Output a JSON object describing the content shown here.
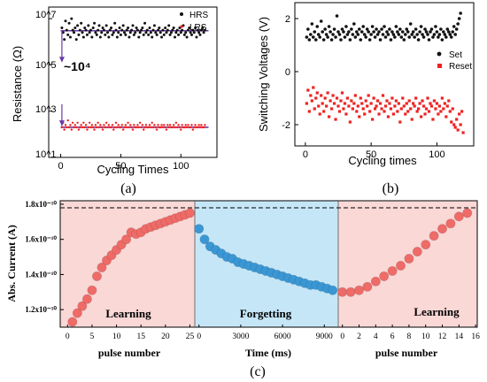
{
  "chart_data": [
    {
      "panel": "a",
      "type": "scatter",
      "xlabel": "Cycling Times",
      "ylabel": "Resistance (Ω)",
      "xlim": [
        -10,
        130
      ],
      "ylim_log10": [
        1,
        7.5
      ],
      "y_scale": "log",
      "x_ticks": [
        "0",
        "50",
        "100"
      ],
      "y_ticks": [
        "10^1",
        "10^3",
        "10^5",
        "10^7"
      ],
      "annotation": "~10⁴",
      "legend": "top-right",
      "series": [
        {
          "name": "HRS",
          "color": "#111111",
          "mean": 3000000,
          "values_log10": [
            6.6,
            6.4,
            6.1,
            6.9,
            6.5,
            6.3,
            6.8,
            6.2,
            7.0,
            6.5,
            6.4,
            6.6,
            6.1,
            6.7,
            6.3,
            6.5,
            6.8,
            6.4,
            6.2,
            6.6,
            6.5,
            6.3,
            6.7,
            6.4,
            6.5,
            6.2,
            6.6,
            6.8,
            6.4,
            6.3,
            6.5,
            6.7,
            6.2,
            6.4,
            6.6,
            6.5,
            6.3,
            6.7,
            6.4,
            6.2,
            6.5,
            6.6,
            6.3,
            6.4,
            6.8,
            6.5,
            6.2,
            6.4,
            6.6,
            6.3,
            6.5,
            6.7,
            6.4,
            6.3,
            6.5,
            6.6,
            6.2,
            6.4,
            6.5,
            6.7,
            6.3,
            6.4,
            6.6,
            6.5,
            6.2,
            6.4,
            6.5,
            6.6,
            6.3,
            6.8,
            6.4,
            6.5,
            6.3,
            6.6,
            6.4,
            6.2,
            6.5,
            6.7,
            6.4,
            6.3,
            6.5,
            6.6,
            6.4,
            6.2,
            6.5,
            6.3,
            6.6,
            6.4,
            6.5,
            6.7,
            6.3,
            6.4,
            6.5,
            6.6,
            6.2,
            6.4,
            6.5,
            6.3,
            6.6,
            6.4,
            6.5,
            6.7,
            6.3,
            6.4,
            6.2,
            6.5,
            6.6,
            6.4,
            6.3,
            6.5,
            6.4,
            6.6,
            6.2,
            6.5,
            6.4,
            6.3,
            6.5,
            6.6,
            6.4,
            6.5
          ]
        },
        {
          "name": "LRS",
          "color": "#ee2222",
          "mean": 200,
          "values_log10": [
            2.3,
            2.5,
            2.2,
            2.4,
            2.3,
            2.6,
            2.3,
            2.4,
            2.2,
            2.5,
            2.3,
            2.4,
            2.3,
            2.5,
            2.2,
            2.3,
            2.4,
            2.3,
            2.5,
            2.3,
            2.4,
            2.2,
            2.3,
            2.5,
            2.3,
            2.4,
            2.3,
            2.2,
            2.4,
            2.3,
            2.5,
            2.3,
            2.4,
            2.3,
            2.2,
            2.4,
            2.3,
            2.5,
            2.3,
            2.4,
            2.3,
            2.3,
            2.4,
            2.2,
            2.3,
            2.5,
            2.3,
            2.4,
            2.3,
            2.3,
            2.4,
            2.2,
            2.3,
            2.4,
            2.3,
            2.5,
            2.3,
            2.4,
            2.3,
            2.2,
            2.4,
            2.3,
            2.3,
            2.4,
            2.3,
            2.5,
            2.3,
            2.4,
            2.2,
            2.3,
            2.4,
            2.3,
            2.3,
            2.4,
            2.3,
            2.5,
            2.3,
            2.4,
            2.3,
            2.2,
            2.4,
            2.3,
            2.3,
            2.4,
            2.3,
            2.4,
            2.3,
            2.2,
            2.4,
            2.3,
            2.4,
            2.3,
            2.3,
            2.4,
            2.3,
            2.5,
            2.3,
            2.4,
            2.3,
            2.2,
            2.4,
            2.3,
            2.3,
            2.4,
            2.3,
            2.4,
            2.3,
            2.3,
            2.4,
            2.2,
            2.3,
            2.4,
            2.3,
            2.3,
            2.4,
            2.3,
            2.4,
            2.3,
            2.3,
            2.4
          ]
        }
      ]
    },
    {
      "panel": "b",
      "type": "scatter",
      "xlabel": "Cycling times",
      "ylabel": "Switching Voltages (V)",
      "xlim": [
        -8,
        128
      ],
      "ylim": [
        -2.8,
        2.6
      ],
      "x_ticks": [
        "0",
        "50",
        "100"
      ],
      "y_ticks": [
        "-2",
        "0",
        "2"
      ],
      "legend": "right",
      "series": [
        {
          "name": "Set",
          "color": "#111111",
          "values": [
            1.3,
            1.6,
            1.2,
            1.4,
            1.8,
            1.3,
            1.5,
            1.2,
            1.7,
            1.4,
            1.3,
            1.9,
            1.5,
            1.2,
            1.6,
            1.4,
            1.3,
            1.7,
            1.5,
            1.2,
            1.4,
            1.6,
            1.3,
            2.1,
            1.5,
            1.4,
            1.2,
            1.6,
            1.5,
            1.3,
            1.7,
            1.4,
            1.5,
            1.2,
            1.6,
            1.4,
            1.8,
            1.3,
            1.5,
            1.4,
            1.6,
            1.2,
            1.5,
            1.7,
            1.4,
            1.3,
            1.6,
            1.5,
            1.2,
            1.4,
            1.7,
            1.5,
            1.3,
            1.6,
            1.4,
            1.5,
            1.2,
            1.6,
            1.4,
            1.7,
            1.3,
            1.5,
            1.4,
            1.6,
            1.2,
            1.5,
            1.4,
            1.3,
            1.7,
            1.5,
            1.4,
            1.6,
            1.3,
            1.5,
            1.2,
            1.4,
            1.6,
            1.5,
            1.3,
            1.8,
            1.4,
            1.5,
            1.3,
            1.6,
            1.4,
            1.2,
            1.5,
            1.7,
            1.4,
            1.3,
            1.6,
            1.5,
            1.4,
            1.2,
            1.5,
            1.6,
            1.3,
            1.4,
            1.7,
            1.5,
            1.3,
            1.4,
            1.6,
            1.2,
            1.5,
            1.4,
            1.3,
            1.6,
            1.5,
            1.4,
            1.3,
            1.5,
            1.7,
            1.4,
            1.6,
            1.8,
            2.0,
            2.2
          ]
        },
        {
          "name": "Reset",
          "color": "#ee2222",
          "values": [
            -1.2,
            -0.7,
            -1.5,
            -0.9,
            -1.1,
            -0.6,
            -1.4,
            -1.0,
            -0.8,
            -1.3,
            -1.6,
            -0.9,
            -1.2,
            -1.5,
            -1.0,
            -1.3,
            -0.8,
            -1.7,
            -1.1,
            -1.4,
            -0.9,
            -1.2,
            -1.8,
            -1.0,
            -1.3,
            -1.5,
            -1.1,
            -0.8,
            -1.4,
            -1.2,
            -1.6,
            -1.0,
            -1.3,
            -1.9,
            -1.1,
            -1.4,
            -1.2,
            -0.9,
            -1.5,
            -1.3,
            -1.7,
            -1.0,
            -1.2,
            -1.4,
            -1.6,
            -1.1,
            -1.3,
            -0.9,
            -1.5,
            -1.2,
            -1.8,
            -1.0,
            -1.4,
            -1.3,
            -1.1,
            -1.6,
            -1.2,
            -1.4,
            -0.9,
            -1.5,
            -1.3,
            -1.1,
            -1.7,
            -1.2,
            -1.4,
            -1.0,
            -1.6,
            -1.3,
            -1.1,
            -1.5,
            -1.2,
            -1.9,
            -1.4,
            -1.0,
            -1.3,
            -1.6,
            -1.2,
            -1.5,
            -1.1,
            -1.4,
            -1.8,
            -1.2,
            -1.3,
            -1.0,
            -1.5,
            -1.4,
            -1.2,
            -1.7,
            -1.1,
            -1.3,
            -1.6,
            -1.4,
            -1.0,
            -1.5,
            -1.2,
            -1.3,
            -1.8,
            -1.1,
            -1.4,
            -1.2,
            -1.6,
            -1.3,
            -1.5,
            -1.0,
            -1.4,
            -1.2,
            -1.7,
            -1.3,
            -1.1,
            -1.5,
            -1.9,
            -1.4,
            -2.0,
            -2.1,
            -1.8,
            -2.2,
            -1.6,
            -2.0,
            -1.5,
            -2.3
          ]
        }
      ]
    },
    {
      "panel": "c",
      "type": "scatter",
      "ylabel": "Abs. Current (A)",
      "ylim": [
        1.1e-10,
        1.82e-10
      ],
      "y_ticks": [
        "1.2x10⁻¹⁰",
        "1.4x10⁻¹⁰",
        "1.6x10⁻¹⁰",
        "1.8x10⁻¹⁰"
      ],
      "reference_line": 1.78e-10,
      "segments": [
        {
          "label": "Learning",
          "xlabel": "pulse number",
          "xlim": [
            -1.5,
            26
          ],
          "x_ticks": [
            "0",
            "5",
            "10",
            "15",
            "20",
            "25"
          ],
          "background": "#f9d8d6",
          "marker": "#ee6b68",
          "x": [
            1,
            2,
            3,
            4,
            5,
            6,
            7,
            8,
            9,
            10,
            11,
            12,
            13,
            14,
            15,
            16,
            17,
            18,
            19,
            20,
            21,
            22,
            23,
            24,
            25
          ],
          "values": [
            1.13e-10,
            1.18e-10,
            1.22e-10,
            1.26e-10,
            1.31e-10,
            1.39e-10,
            1.44e-10,
            1.48e-10,
            1.51e-10,
            1.54e-10,
            1.57e-10,
            1.6e-10,
            1.64e-10,
            1.63e-10,
            1.64e-10,
            1.66e-10,
            1.67e-10,
            1.68e-10,
            1.69e-10,
            1.7e-10,
            1.71e-10,
            1.72e-10,
            1.73e-10,
            1.74e-10,
            1.75e-10
          ]
        },
        {
          "label": "Forgetting",
          "xlabel": "Time (ms)",
          "xlim": [
            -300,
            10000
          ],
          "x_ticks": [
            "0",
            "3000",
            "6000",
            "9000"
          ],
          "background": "#c5e6f7",
          "marker": "#3a97d4",
          "x": [
            0,
            400,
            800,
            1200,
            1600,
            2000,
            2400,
            2800,
            3200,
            3600,
            4000,
            4400,
            4800,
            5200,
            5600,
            6000,
            6400,
            6800,
            7200,
            7600,
            8000,
            8400,
            8800,
            9200,
            9600
          ],
          "values": [
            1.66e-10,
            1.6e-10,
            1.56e-10,
            1.54e-10,
            1.52e-10,
            1.5e-10,
            1.49e-10,
            1.47e-10,
            1.46e-10,
            1.45e-10,
            1.44e-10,
            1.43e-10,
            1.42e-10,
            1.41e-10,
            1.4e-10,
            1.39e-10,
            1.38e-10,
            1.37e-10,
            1.36e-10,
            1.35e-10,
            1.34e-10,
            1.34e-10,
            1.33e-10,
            1.32e-10,
            1.31e-10
          ]
        },
        {
          "label": "Learning",
          "xlabel": "pulse number",
          "xlim": [
            -0.5,
            16.2
          ],
          "x_ticks": [
            "0",
            "2",
            "4",
            "6",
            "8",
            "10",
            "12",
            "14",
            "16"
          ],
          "background": "#f9d8d6",
          "marker": "#ee6b68",
          "x": [
            0,
            1,
            2,
            3,
            4,
            5,
            6,
            7,
            8,
            9,
            10,
            11,
            12,
            13,
            14,
            15
          ],
          "values": [
            1.3e-10,
            1.3e-10,
            1.31e-10,
            1.33e-10,
            1.36e-10,
            1.39e-10,
            1.42e-10,
            1.45e-10,
            1.49e-10,
            1.53e-10,
            1.57e-10,
            1.62e-10,
            1.66e-10,
            1.69e-10,
            1.73e-10,
            1.75e-10
          ]
        }
      ]
    }
  ],
  "captions": {
    "a": "(a)",
    "b": "(b)",
    "c": "(c)"
  }
}
